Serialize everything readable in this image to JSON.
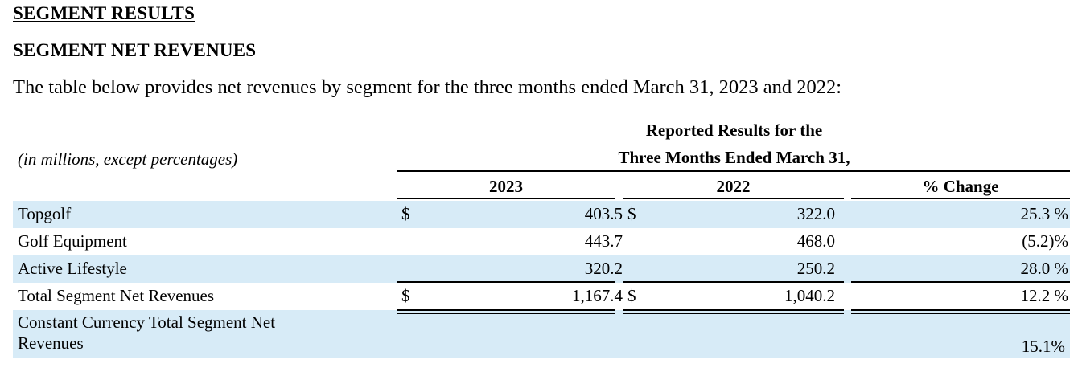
{
  "section_title": "SEGMENT RESULTS",
  "subsection_title": "SEGMENT NET REVENUES",
  "intro_text": "The table below provides net revenues by segment for the three months ended March 31, 2023 and 2022:",
  "table": {
    "units_note": "(in millions, except percentages)",
    "header_line1": "Reported Results for the",
    "header_line2": "Three Months Ended March 31,",
    "col_2023": "2023",
    "col_2022": "2022",
    "col_change": "% Change",
    "rows": [
      {
        "label": "Topgolf",
        "dollar_2023": "$",
        "v2023": "403.5",
        "dollar_2022": "$",
        "v2022": "322.0",
        "change": "25.3 %"
      },
      {
        "label": "Golf Equipment",
        "dollar_2023": "",
        "v2023": "443.7",
        "dollar_2022": "",
        "v2022": "468.0",
        "change": "(5.2)%"
      },
      {
        "label": "Active Lifestyle",
        "dollar_2023": "",
        "v2023": "320.2",
        "dollar_2022": "",
        "v2022": "250.2",
        "change": "28.0 %"
      },
      {
        "label": "Total Segment Net Revenues",
        "dollar_2023": "$",
        "v2023": "1,167.4",
        "dollar_2022": "$",
        "v2022": "1,040.2",
        "change": "12.2 %"
      }
    ],
    "constant_currency": {
      "label_line1": "Constant Currency Total Segment Net",
      "label_line2": "Revenues",
      "change": "15.1%"
    }
  }
}
